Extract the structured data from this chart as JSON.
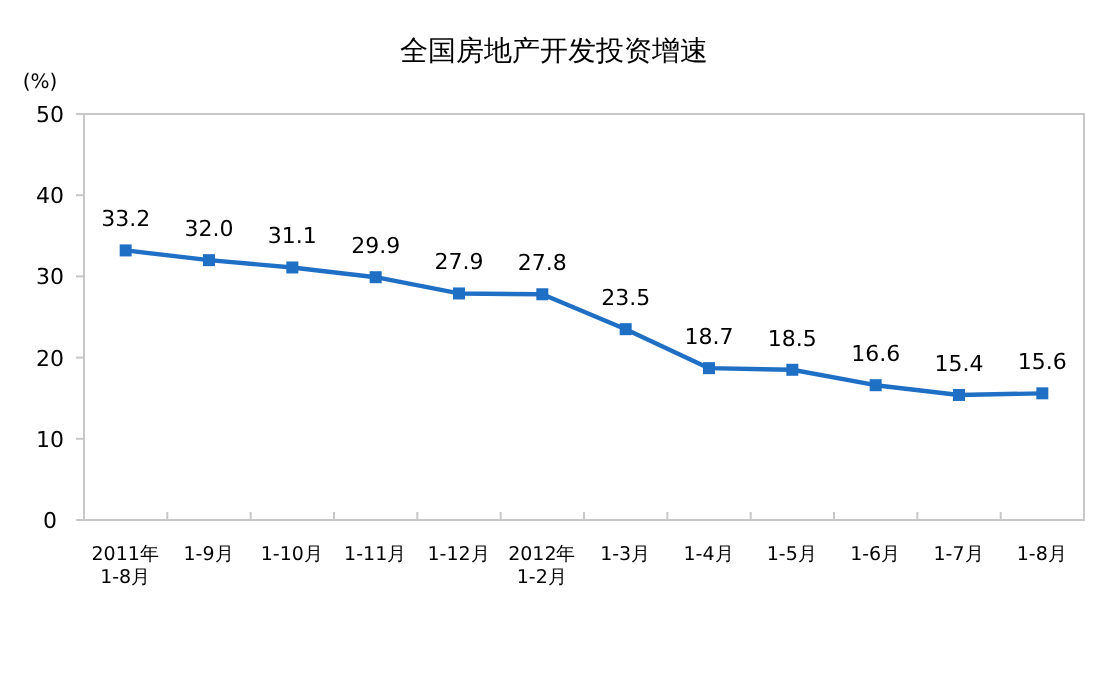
{
  "chart_data": {
    "type": "line",
    "title": "全国房地产开发投资增速",
    "ylabel": "(%)",
    "categories": [
      "2011年\n1-8月",
      "1-9月",
      "1-10月",
      "1-11月",
      "1-12月",
      "2012年\n1-2月",
      "1-3月",
      "1-4月",
      "1-5月",
      "1-6月",
      "1-7月",
      "1-8月"
    ],
    "series": [
      {
        "color": "#1f6fc5",
        "values": [
          33.2,
          32.0,
          31.1,
          29.9,
          27.9,
          27.8,
          23.5,
          18.7,
          18.5,
          16.6,
          15.4,
          15.6
        ],
        "value_labels": [
          "33.2",
          "32.0",
          "31.1",
          "29.9",
          "27.9",
          "27.8",
          "23.5",
          "18.7",
          "18.5",
          "16.6",
          "15.4",
          "15.6"
        ]
      }
    ],
    "ylim": [
      0,
      50
    ],
    "yticks": [
      0,
      10,
      20,
      30,
      40,
      50
    ],
    "marker": "square",
    "line_style": "solid",
    "grid": false
  }
}
